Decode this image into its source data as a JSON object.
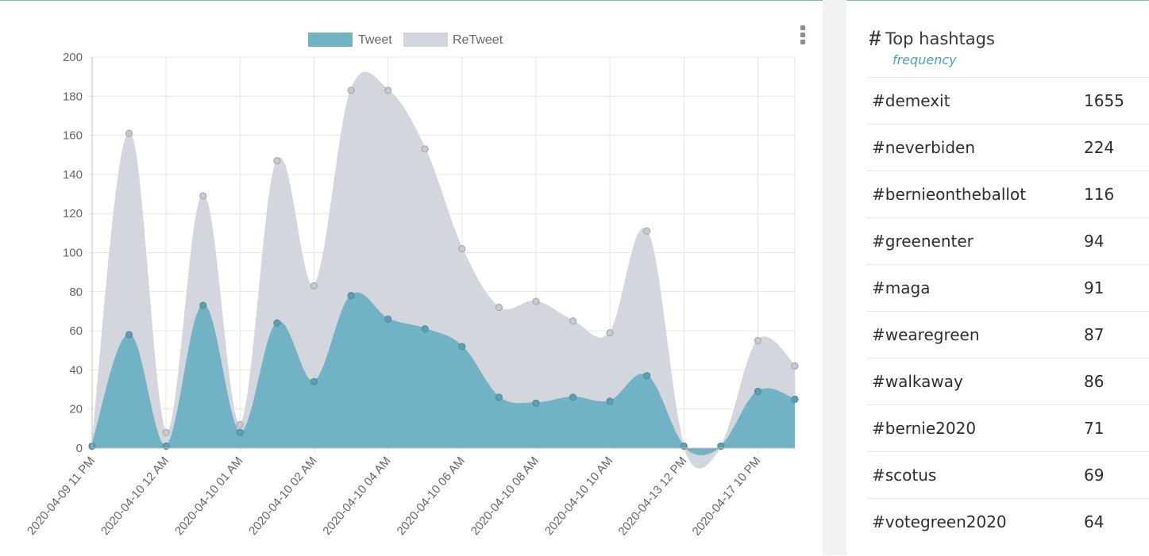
{
  "chart_data": {
    "type": "area",
    "legend": [
      "Tweet",
      "ReTweet"
    ],
    "legend_position": "top",
    "grid": true,
    "ylim": [
      0,
      200
    ],
    "yticks": [
      0,
      20,
      40,
      60,
      80,
      100,
      120,
      140,
      160,
      180,
      200
    ],
    "xtick_labels": [
      "2020-04-09 11 PM",
      "2020-04-10 12 AM",
      "2020-04-10 01 AM",
      "2020-04-10 02 AM",
      "2020-04-10 04 AM",
      "2020-04-10 06 AM",
      "2020-04-10 08 AM",
      "2020-04-10 10 AM",
      "2020-04-13 12 PM",
      "2020-04-17 10 PM"
    ],
    "series": [
      {
        "name": "Tweet",
        "color": "#72b2c5",
        "values": [
          1,
          58,
          1,
          73,
          8,
          64,
          34,
          78,
          66,
          61,
          52,
          26,
          23,
          26,
          24,
          37,
          1,
          1,
          29,
          25
        ]
      },
      {
        "name": "ReTweet",
        "color": "#d3d6dc",
        "values": [
          1,
          161,
          8,
          129,
          12,
          147,
          83,
          183,
          183,
          153,
          102,
          72,
          75,
          65,
          59,
          111,
          1,
          1,
          55,
          42
        ]
      }
    ]
  },
  "hashtags": {
    "title": "Top hashtags",
    "subtitle": "frequency",
    "icon": "hash-icon",
    "items": [
      {
        "tag": "#demexit",
        "count": "1655"
      },
      {
        "tag": "#neverbiden",
        "count": "224"
      },
      {
        "tag": "#bernieontheballot",
        "count": "116"
      },
      {
        "tag": "#greenenter",
        "count": "94"
      },
      {
        "tag": "#maga",
        "count": "91"
      },
      {
        "tag": "#wearegreen",
        "count": "87"
      },
      {
        "tag": "#walkaway",
        "count": "86"
      },
      {
        "tag": "#bernie2020",
        "count": "71"
      },
      {
        "tag": "#scotus",
        "count": "69"
      },
      {
        "tag": "#votegreen2020",
        "count": "64"
      }
    ]
  }
}
